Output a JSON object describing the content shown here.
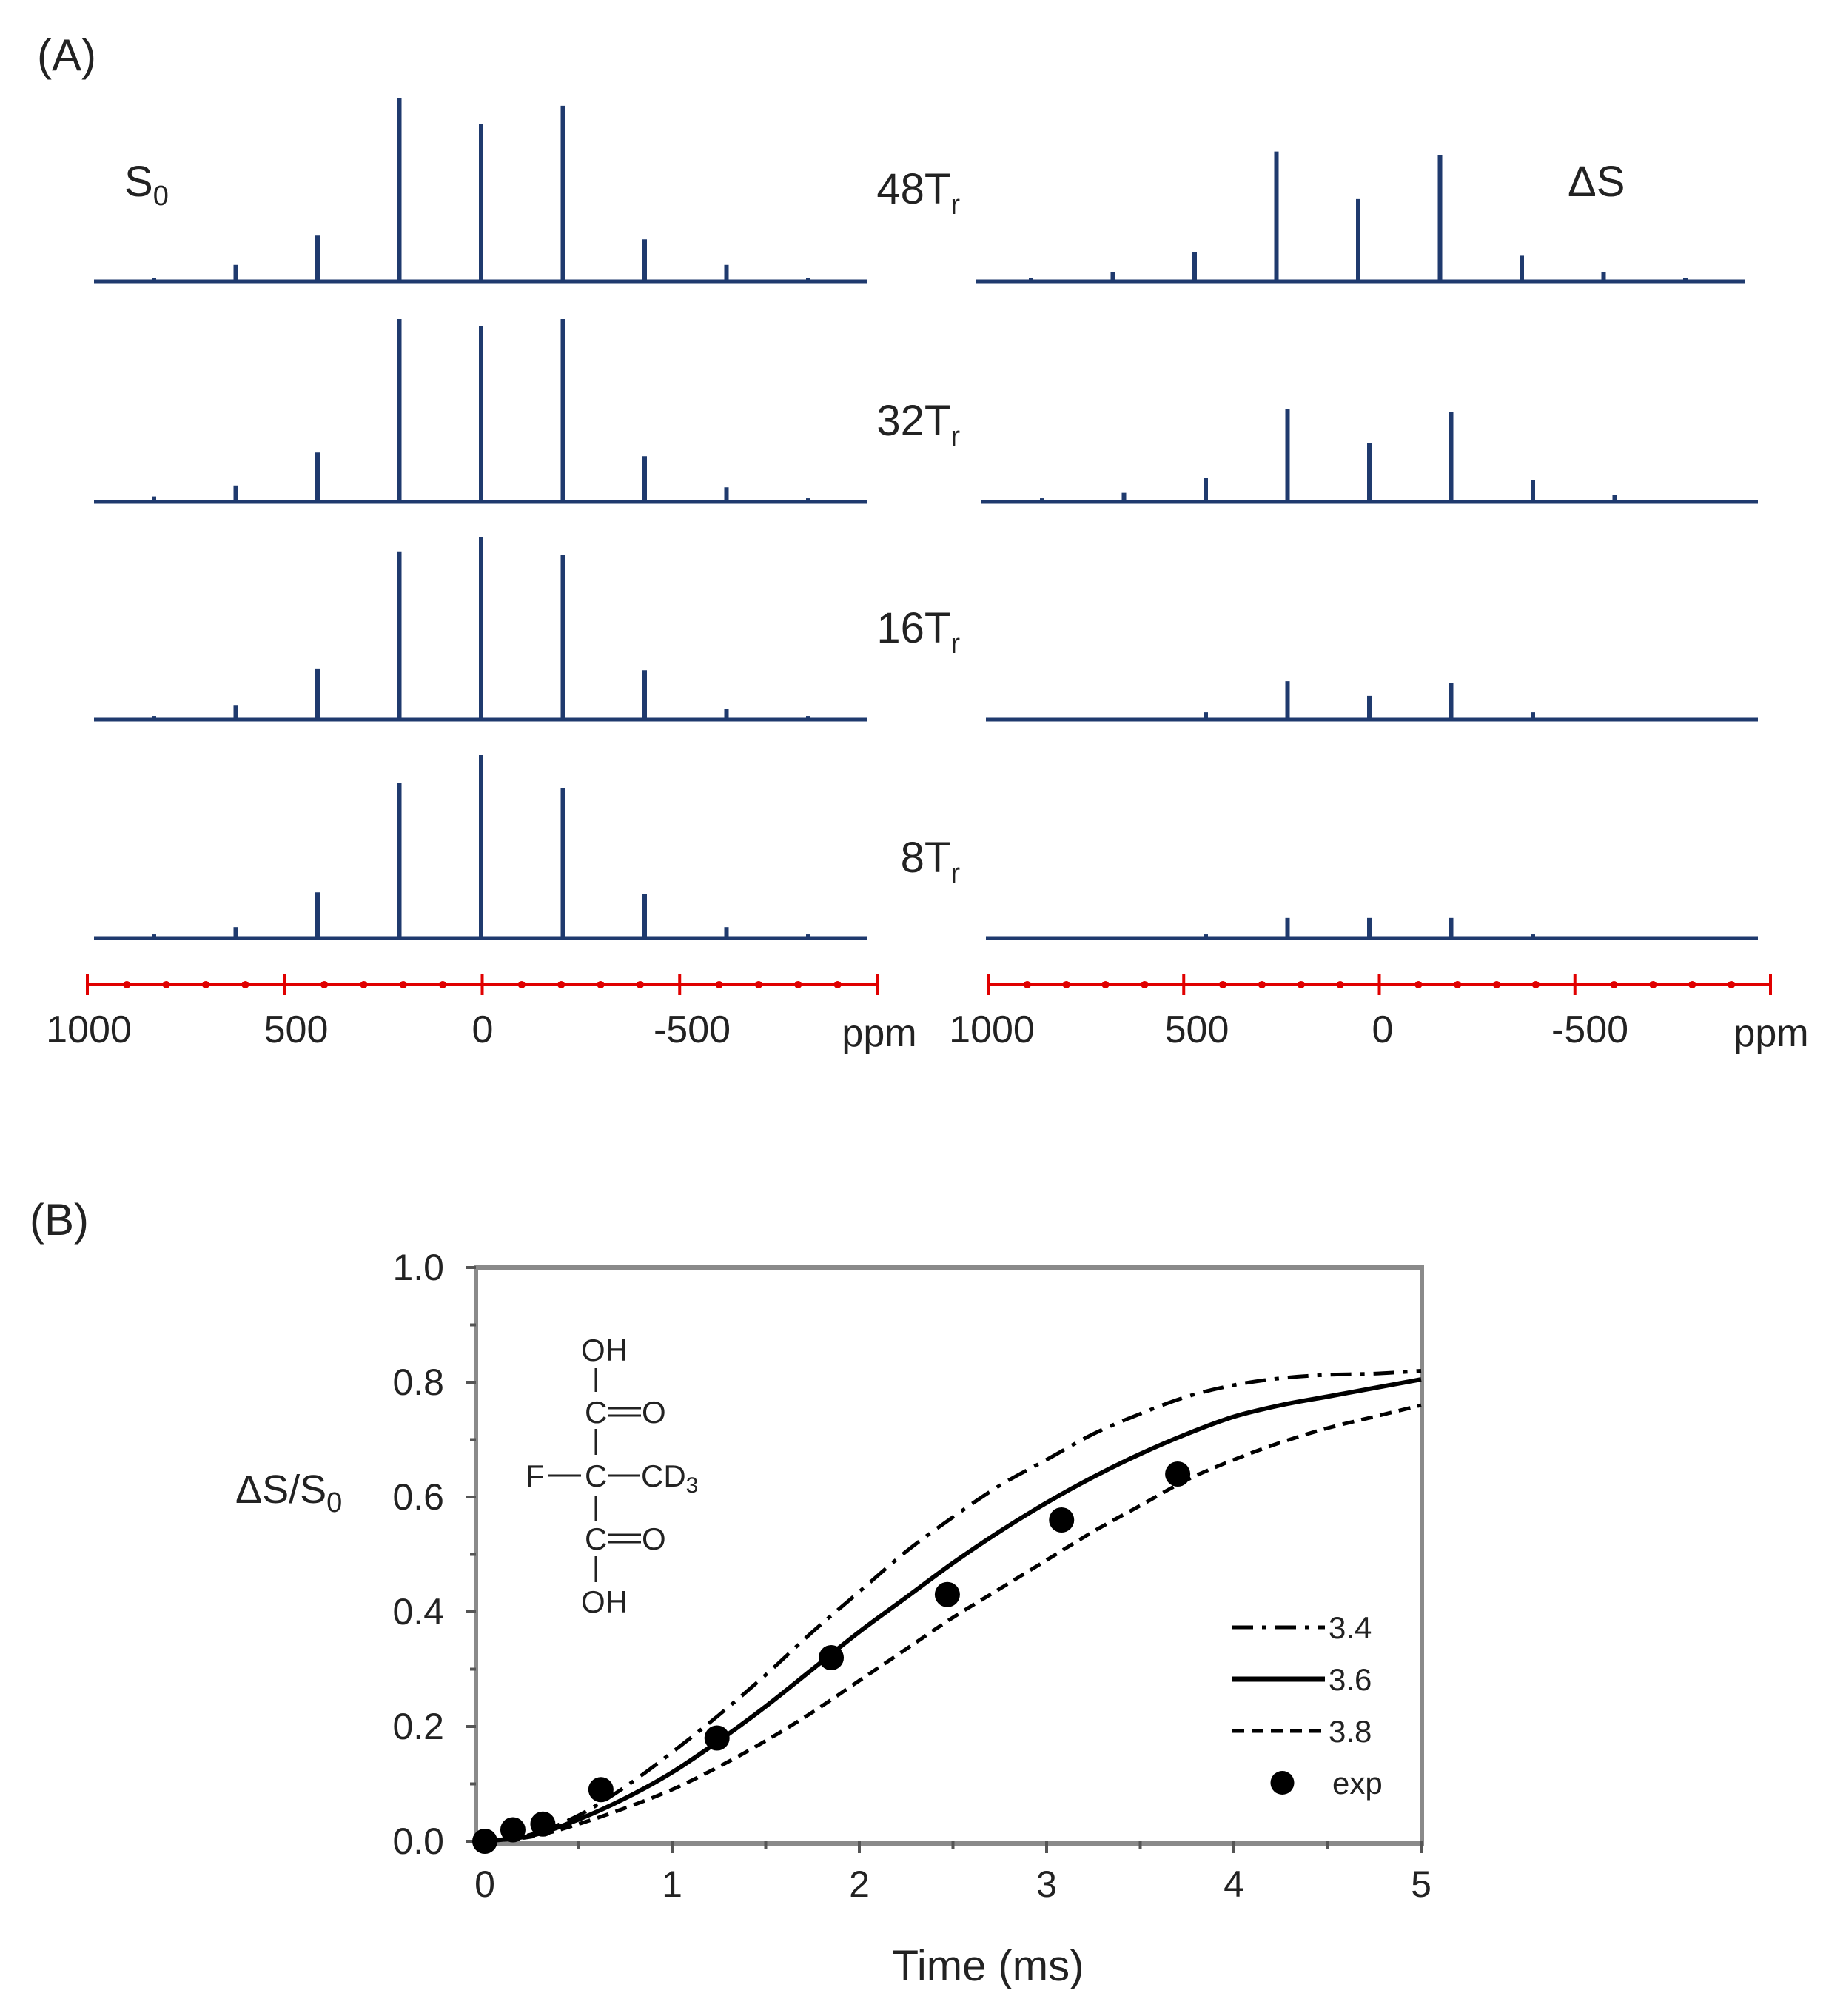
{
  "chart_data": [
    {
      "type": "line",
      "panel_label": "(A)",
      "title": "",
      "xlabel": "ppm",
      "ylabel": "",
      "colors": {
        "spectrum": "#1f3a6e",
        "axis": "#e00000"
      },
      "left_corner_label": {
        "main": "S",
        "sub": "0"
      },
      "right_corner_label": "ΔS",
      "xlim": [
        1000,
        -1000
      ],
      "x_ticks": [
        "1000",
        "500",
        "0",
        "-500"
      ],
      "peak_positions_ppm": [
        800,
        600,
        400,
        200,
        0,
        -200,
        -400,
        -600,
        -800
      ],
      "rows": [
        {
          "label": "48T",
          "sub": "r",
          "S0": [
            0.02,
            0.09,
            0.25,
            1.0,
            0.86,
            0.96,
            0.23,
            0.09,
            0.02
          ],
          "dS": [
            0.02,
            0.05,
            0.16,
            0.71,
            0.45,
            0.69,
            0.14,
            0.05,
            0.02
          ]
        },
        {
          "label": "32T",
          "sub": "r",
          "S0": [
            0.03,
            0.09,
            0.27,
            1.0,
            0.96,
            1.0,
            0.25,
            0.08,
            0.02
          ],
          "dS": [
            0.02,
            0.05,
            0.13,
            0.51,
            0.32,
            0.49,
            0.12,
            0.04,
            0.01
          ]
        },
        {
          "label": "16T",
          "sub": "r",
          "S0": [
            0.02,
            0.08,
            0.28,
            0.92,
            1.0,
            0.9,
            0.27,
            0.06,
            0.02
          ],
          "dS": [
            0.0,
            0.01,
            0.04,
            0.21,
            0.13,
            0.2,
            0.04,
            0.01,
            0.0
          ]
        },
        {
          "label": "8T",
          "sub": "r",
          "S0": [
            0.02,
            0.06,
            0.25,
            0.85,
            1.0,
            0.82,
            0.24,
            0.06,
            0.02
          ],
          "dS": [
            0.0,
            0.01,
            0.02,
            0.11,
            0.11,
            0.11,
            0.02,
            0.01,
            0.0
          ]
        }
      ]
    },
    {
      "type": "line",
      "panel_label": "(B)",
      "title": "",
      "xlabel": "Time (ms)",
      "ylabel": {
        "main": "ΔS/S",
        "sub": "0"
      },
      "xlim": [
        0,
        5
      ],
      "ylim": [
        0,
        1.0
      ],
      "x_ticks": [
        "0",
        "1",
        "2",
        "3",
        "4",
        "5"
      ],
      "y_ticks": [
        "0.0",
        "0.2",
        "0.4",
        "0.6",
        "0.8",
        "1.0"
      ],
      "grid": false,
      "legend_position": "bottom-right",
      "series": [
        {
          "name": "3.4",
          "style": "dashdot",
          "x": [
            0,
            0.25,
            0.5,
            0.75,
            1.0,
            1.25,
            1.5,
            1.75,
            2.0,
            2.25,
            2.5,
            2.75,
            3.0,
            3.25,
            3.5,
            3.75,
            4.0,
            4.25,
            4.5,
            4.75,
            5.0
          ],
          "y": [
            0,
            0.012,
            0.045,
            0.095,
            0.155,
            0.22,
            0.29,
            0.365,
            0.435,
            0.505,
            0.565,
            0.62,
            0.665,
            0.71,
            0.745,
            0.775,
            0.795,
            0.807,
            0.813,
            0.815,
            0.82
          ]
        },
        {
          "name": "3.6",
          "style": "solid",
          "x": [
            0,
            0.25,
            0.5,
            0.75,
            1.0,
            1.25,
            1.5,
            1.75,
            2.0,
            2.25,
            2.5,
            2.75,
            3.0,
            3.25,
            3.5,
            3.75,
            4.0,
            4.25,
            4.5,
            4.75,
            5.0
          ],
          "y": [
            0,
            0.01,
            0.038,
            0.075,
            0.12,
            0.175,
            0.235,
            0.3,
            0.365,
            0.425,
            0.485,
            0.54,
            0.59,
            0.635,
            0.675,
            0.71,
            0.74,
            0.76,
            0.775,
            0.79,
            0.805
          ]
        },
        {
          "name": "3.8",
          "style": "dashed",
          "x": [
            0,
            0.25,
            0.5,
            0.75,
            1.0,
            1.25,
            1.5,
            1.75,
            2.0,
            2.25,
            2.5,
            2.75,
            3.0,
            3.25,
            3.5,
            3.75,
            4.0,
            4.25,
            4.5,
            4.75,
            5.0
          ],
          "y": [
            0,
            0.008,
            0.03,
            0.058,
            0.09,
            0.13,
            0.175,
            0.225,
            0.28,
            0.335,
            0.39,
            0.44,
            0.49,
            0.54,
            0.585,
            0.63,
            0.665,
            0.695,
            0.72,
            0.74,
            0.76
          ]
        },
        {
          "name": "exp",
          "style": "markers",
          "x": [
            0,
            0.15,
            0.31,
            0.62,
            1.24,
            1.85,
            2.47,
            3.08,
            3.7
          ],
          "y": [
            0,
            0.02,
            0.03,
            0.09,
            0.18,
            0.32,
            0.43,
            0.56,
            0.64
          ]
        }
      ],
      "molecule": {
        "top_group": "OH",
        "carbonyl_upper": {
          "c": "C",
          "o": "O"
        },
        "center_left": "F",
        "center_atom": "C",
        "center_right": {
          "main": "CD",
          "sub": "3"
        },
        "carbonyl_lower": {
          "c": "C",
          "o": "O"
        },
        "bottom_group": "OH"
      }
    }
  ]
}
